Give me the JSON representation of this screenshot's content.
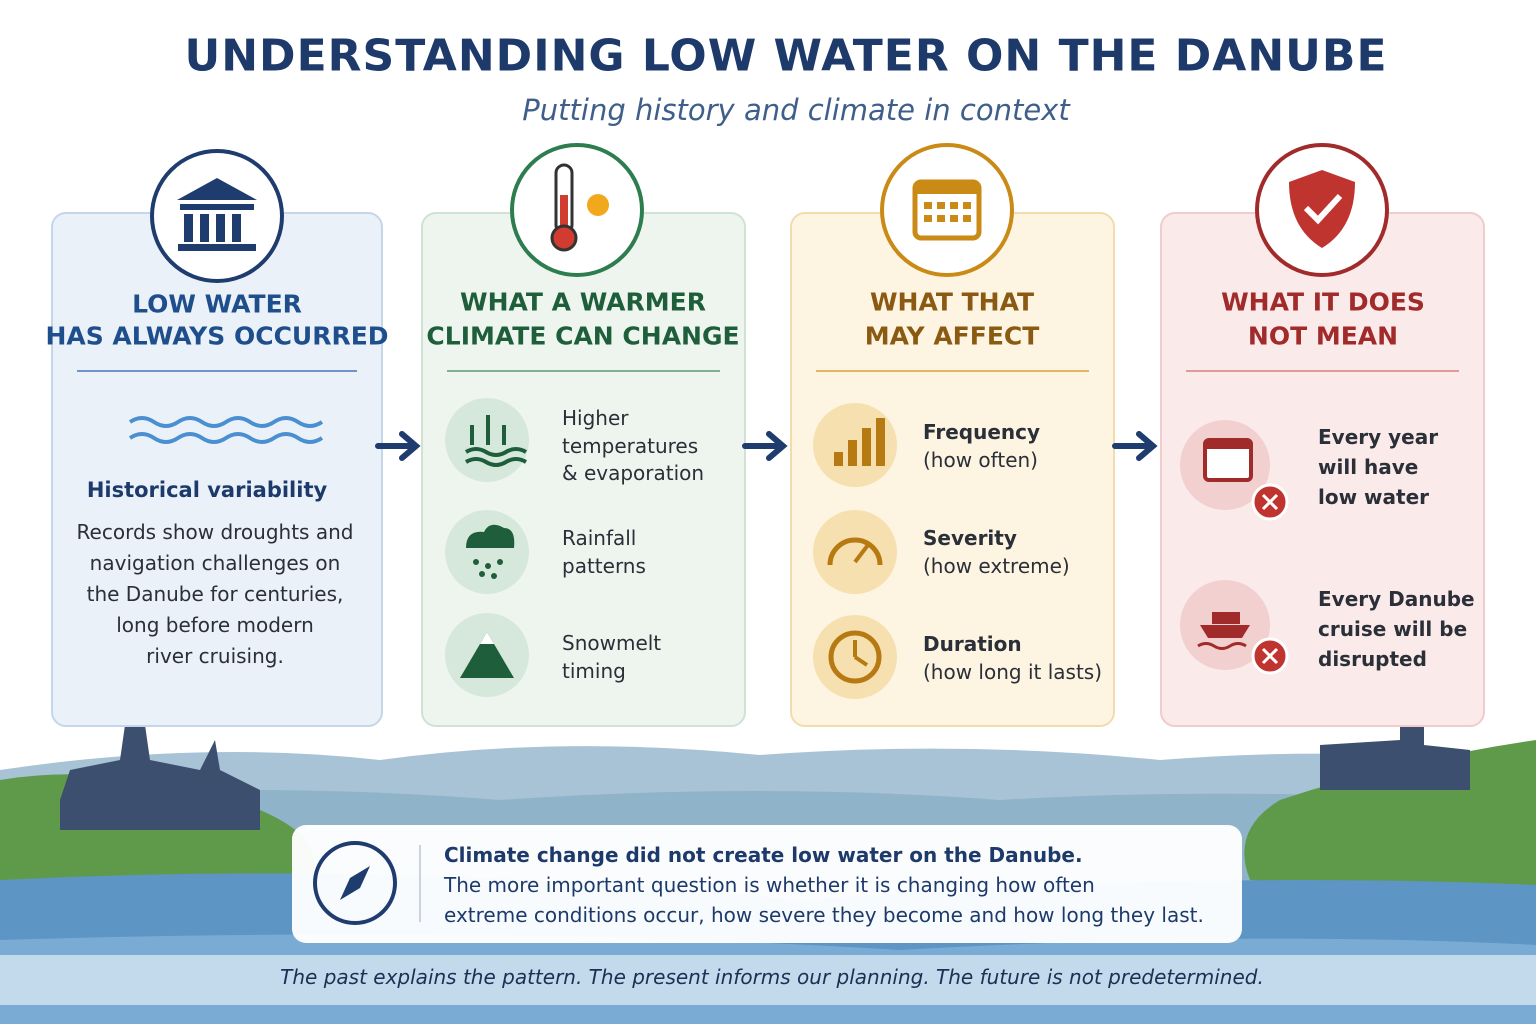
{
  "header": {
    "title": "UNDERSTANDING LOW WATER ON THE DANUBE",
    "subtitle": "Putting history and climate in context"
  },
  "columns": [
    {
      "heading_lines": [
        "LOW WATER",
        "HAS ALWAYS OCCURRED"
      ],
      "subheading": "Historical variability",
      "body_lines": [
        "Records show droughts and",
        "navigation challenges on",
        "the Danube for centuries,",
        "long before modern",
        "river cruising."
      ]
    },
    {
      "heading_lines": [
        "WHAT A WARMER",
        "CLIMATE CAN CHANGE"
      ],
      "items": [
        {
          "lines": [
            "Higher",
            "temperatures",
            "& evaporation"
          ]
        },
        {
          "lines": [
            "Rainfall",
            "patterns"
          ]
        },
        {
          "lines": [
            "Snowmelt",
            "timing"
          ]
        }
      ]
    },
    {
      "heading_lines": [
        "WHAT THAT",
        "MAY AFFECT"
      ],
      "items": [
        {
          "label": "Frequency",
          "detail": "(how often)"
        },
        {
          "label": "Severity",
          "detail": "(how extreme)"
        },
        {
          "label": "Duration",
          "detail": "(how long it lasts)"
        }
      ]
    },
    {
      "heading_lines": [
        "WHAT IT DOES",
        "NOT MEAN"
      ],
      "items": [
        {
          "lines": [
            "Every year",
            "will have",
            "low water"
          ]
        },
        {
          "lines": [
            "Every Danube",
            "cruise will be",
            "disrupted"
          ]
        }
      ]
    }
  ],
  "callout": {
    "title": "Climate change did not create low water on the Danube.",
    "body_lines": [
      "The more important question is whether it is changing how often",
      "extreme conditions occur, how severe they become and how long they last."
    ]
  },
  "footer": "The past explains the pattern. The present informs our planning. The future is not predetermined."
}
